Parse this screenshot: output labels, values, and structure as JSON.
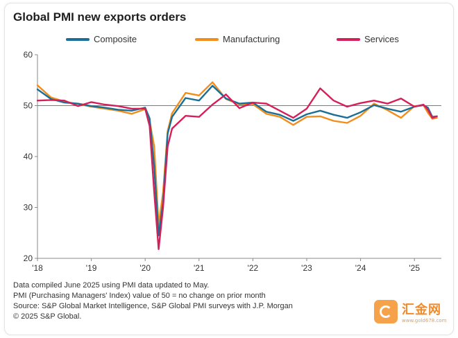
{
  "title": "Global PMI new exports orders",
  "footnotes": [
    "Data compiled June 2025 using PMI data updated to May.",
    "PMI (Purchasing Managers' Index) value of 50 = no change on prior month",
    "Source: S&P Global Market Intelligence, S&P Global PMI surveys with J.P. Morgan",
    "© 2025 S&P Global."
  ],
  "watermark": {
    "name": "汇金网",
    "url": "www.gold678.com"
  },
  "chart_data": {
    "type": "line",
    "ylim": [
      20,
      60
    ],
    "y_ticks": [
      20,
      30,
      40,
      50,
      60
    ],
    "x_ticks": [
      "'18",
      "'19",
      "'20",
      "'21",
      "'22",
      "'23",
      "'24",
      "'25"
    ],
    "reference_line": 50,
    "grid": false,
    "legend_position": "top",
    "series_x_years": [
      2018.0,
      2018.25,
      2018.5,
      2018.75,
      2019.0,
      2019.25,
      2019.5,
      2019.75,
      2020.0,
      2020.083,
      2020.167,
      2020.25,
      2020.333,
      2020.417,
      2020.5,
      2020.75,
      2021.0,
      2021.25,
      2021.5,
      2021.75,
      2022.0,
      2022.25,
      2022.5,
      2022.75,
      2023.0,
      2023.25,
      2023.5,
      2023.75,
      2024.0,
      2024.25,
      2024.5,
      2024.75,
      2025.0,
      2025.167,
      2025.25,
      2025.333,
      2025.417
    ],
    "series": [
      {
        "name": "Composite",
        "color": "#1a6f96",
        "values": [
          53.2,
          51.3,
          50.6,
          50.4,
          49.9,
          49.6,
          49.2,
          49.0,
          49.6,
          47.5,
          38.0,
          24.5,
          31.0,
          44.5,
          47.8,
          51.5,
          51.0,
          53.9,
          51.4,
          50.4,
          50.6,
          48.8,
          48.2,
          47.0,
          48.3,
          49.0,
          48.2,
          47.6,
          48.7,
          50.1,
          49.4,
          48.8,
          49.8,
          50.1,
          49.6,
          47.8,
          47.9
        ]
      },
      {
        "name": "Manufacturing",
        "color": "#f28c1b",
        "values": [
          54.0,
          51.6,
          50.8,
          50.3,
          49.8,
          49.4,
          49.0,
          48.4,
          49.3,
          47.0,
          42.0,
          26.5,
          33.0,
          45.0,
          48.5,
          52.5,
          52.0,
          54.6,
          51.3,
          50.2,
          50.3,
          48.4,
          47.8,
          46.2,
          47.8,
          47.9,
          47.0,
          46.6,
          48.0,
          50.4,
          49.1,
          47.6,
          49.9,
          50.1,
          48.6,
          47.4,
          47.6
        ]
      },
      {
        "name": "Services",
        "color": "#d41f59",
        "values": [
          51.0,
          51.1,
          51.0,
          49.9,
          50.7,
          50.2,
          49.9,
          49.4,
          49.4,
          46.0,
          33.0,
          21.8,
          30.0,
          42.0,
          45.5,
          48.0,
          47.8,
          50.2,
          52.2,
          49.5,
          50.6,
          50.4,
          49.0,
          47.6,
          49.4,
          53.4,
          51.0,
          49.8,
          50.5,
          51.0,
          50.4,
          51.4,
          49.8,
          50.2,
          49.2,
          47.6,
          47.9
        ]
      }
    ]
  }
}
